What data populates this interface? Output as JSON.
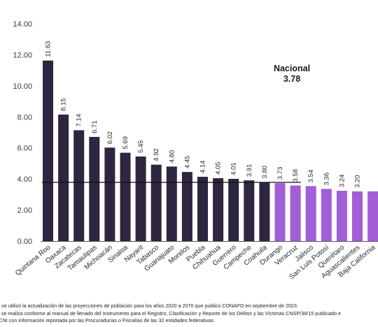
{
  "chart_data": {
    "type": "bar",
    "categories": [
      "Quintana Roo",
      "Oaxaca",
      "Zacatecas",
      "Tamaulipas",
      "Michoacán",
      "Sinaloa",
      "Nayarit",
      "Tabasco",
      "Guanajuato",
      "Morelos",
      "Puebla",
      "Chihuahua",
      "Guerrero",
      "Campeche",
      "Coahuila",
      "Durango",
      "Veracruz",
      "Jalisco",
      "San Luis Potosí",
      "Querétaro",
      "Aguascalientes",
      "Baja California"
    ],
    "values": [
      11.63,
      8.15,
      7.14,
      6.71,
      6.02,
      5.69,
      5.45,
      4.92,
      4.8,
      4.45,
      4.14,
      4.05,
      4.01,
      3.91,
      3.8,
      3.73,
      3.58,
      3.54,
      3.36,
      3.24,
      3.2,
      3.2
    ],
    "value_labels": [
      "11.63",
      "8.15",
      "7.14",
      "6.71",
      "6.02",
      "5.69",
      "5.45",
      "4.92",
      "4.80",
      "4.45",
      "4.14",
      "4.05",
      "4.01",
      "3.91",
      "3.80",
      "3.73",
      "3.58",
      "3.54",
      "3.36",
      "3.24",
      "3.20",
      ""
    ],
    "ylim": [
      0,
      14
    ],
    "yticks": [
      "0.00",
      "2.00",
      "4.00",
      "6.00",
      "8.00",
      "10.00",
      "12.00",
      "14.00"
    ],
    "grid": false,
    "reference_line": {
      "value": 3.78,
      "label": "Nacional",
      "value_label": "3.78"
    },
    "colors": {
      "above": "#2e2640",
      "below": "#a25ed6"
    }
  },
  "notes": [
    "o se utilizó la actualización de las proyecciones de población para los años 2020 a 2070 que publicó CONAPO en septiembre de 2023.",
    "o se realiza conforme al manual de llenado del Instrumento para el Registro, Clasificación y Reporte de los Delitos y las Víctimas CNSP/38/15 publicado e",
    "-CNI con información reportada por las Procuradurías o Fiscalías de las 32 entidades federativas."
  ]
}
